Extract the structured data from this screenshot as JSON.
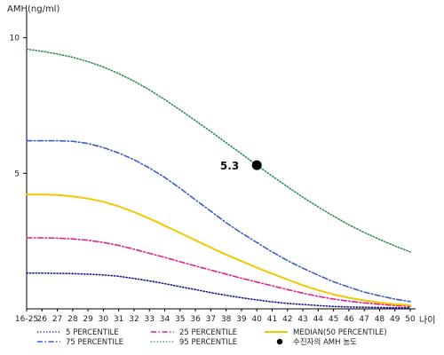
{
  "chart_data": {
    "type": "line",
    "ylabel": "AMH(ng/ml)",
    "xlabel": "나이",
    "ylim": [
      0,
      11
    ],
    "yticks": [
      5,
      10
    ],
    "categories": [
      "16-25",
      "26",
      "27",
      "28",
      "29",
      "30",
      "31",
      "32",
      "33",
      "34",
      "35",
      "36",
      "37",
      "38",
      "39",
      "40",
      "41",
      "42",
      "43",
      "44",
      "45",
      "46",
      "47",
      "48",
      "49",
      "50"
    ],
    "series": [
      {
        "name": "5 PERCENTILE",
        "color": "#1a1a8c",
        "dash": "dot",
        "values": [
          1.32,
          1.32,
          1.31,
          1.3,
          1.28,
          1.25,
          1.2,
          1.12,
          1.03,
          0.93,
          0.82,
          0.71,
          0.6,
          0.5,
          0.41,
          0.33,
          0.26,
          0.2,
          0.16,
          0.12,
          0.09,
          0.07,
          0.06,
          0.05,
          0.04,
          0.04
        ]
      },
      {
        "name": "25 PERCENTILE",
        "color": "#e0208a",
        "dash": "dashdot",
        "values": [
          2.62,
          2.62,
          2.61,
          2.58,
          2.53,
          2.45,
          2.34,
          2.2,
          2.05,
          1.9,
          1.74,
          1.58,
          1.43,
          1.28,
          1.13,
          0.99,
          0.85,
          0.71,
          0.58,
          0.46,
          0.36,
          0.28,
          0.22,
          0.17,
          0.12,
          0.09
        ]
      },
      {
        "name": "MEDIAN(50 PERCENTILE)",
        "color": "#f0c800",
        "dash": "solid",
        "values": [
          4.22,
          4.22,
          4.2,
          4.15,
          4.07,
          3.95,
          3.78,
          3.57,
          3.33,
          3.07,
          2.8,
          2.53,
          2.26,
          2.0,
          1.76,
          1.52,
          1.3,
          1.08,
          0.87,
          0.69,
          0.53,
          0.41,
          0.31,
          0.23,
          0.17,
          0.13
        ]
      },
      {
        "name": "75 PERCENTILE",
        "color": "#3a5fbf",
        "dash": "dashdot",
        "values": [
          6.2,
          6.2,
          6.2,
          6.18,
          6.1,
          5.95,
          5.75,
          5.5,
          5.2,
          4.85,
          4.45,
          4.02,
          3.6,
          3.18,
          2.8,
          2.45,
          2.1,
          1.78,
          1.5,
          1.24,
          1.0,
          0.8,
          0.62,
          0.48,
          0.36,
          0.27
        ]
      },
      {
        "name": "95 PERCENTILE",
        "color": "#2e8b57",
        "dash": "dot",
        "values": [
          9.58,
          9.5,
          9.4,
          9.28,
          9.12,
          8.92,
          8.68,
          8.4,
          8.08,
          7.72,
          7.34,
          6.94,
          6.54,
          6.13,
          5.72,
          5.3,
          4.9,
          4.5,
          4.12,
          3.76,
          3.42,
          3.1,
          2.82,
          2.56,
          2.32,
          2.1
        ]
      }
    ],
    "marker": {
      "label": "수진자의 AMH 농도",
      "x": "40",
      "y": 5.3,
      "value_label": "5.3",
      "color": "#000000"
    },
    "legend_position": "bottom",
    "grid": false
  }
}
